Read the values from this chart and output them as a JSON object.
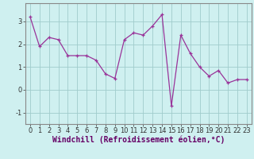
{
  "x": [
    0,
    1,
    2,
    3,
    4,
    5,
    6,
    7,
    8,
    9,
    10,
    11,
    12,
    13,
    14,
    15,
    16,
    17,
    18,
    19,
    20,
    21,
    22,
    23
  ],
  "y": [
    3.2,
    1.9,
    2.3,
    2.2,
    1.5,
    1.5,
    1.5,
    1.3,
    0.7,
    0.5,
    2.2,
    2.5,
    2.4,
    2.8,
    3.3,
    -0.7,
    2.4,
    1.6,
    1.0,
    0.6,
    0.85,
    0.3,
    0.45,
    0.45
  ],
  "line_color": "#993399",
  "marker": "+",
  "marker_size": 3,
  "background_color": "#cff0f0",
  "grid_color": "#a0cccc",
  "xlabel": "Windchill (Refroidissement éolien,°C)",
  "ylabel": "",
  "title": "",
  "xlim": [
    -0.5,
    23.5
  ],
  "ylim": [
    -1.5,
    3.8
  ],
  "yticks": [
    -1,
    0,
    1,
    2,
    3
  ],
  "xticks": [
    0,
    1,
    2,
    3,
    4,
    5,
    6,
    7,
    8,
    9,
    10,
    11,
    12,
    13,
    14,
    15,
    16,
    17,
    18,
    19,
    20,
    21,
    22,
    23
  ],
  "tick_fontsize": 6,
  "xlabel_fontsize": 7,
  "spine_color": "#888888"
}
